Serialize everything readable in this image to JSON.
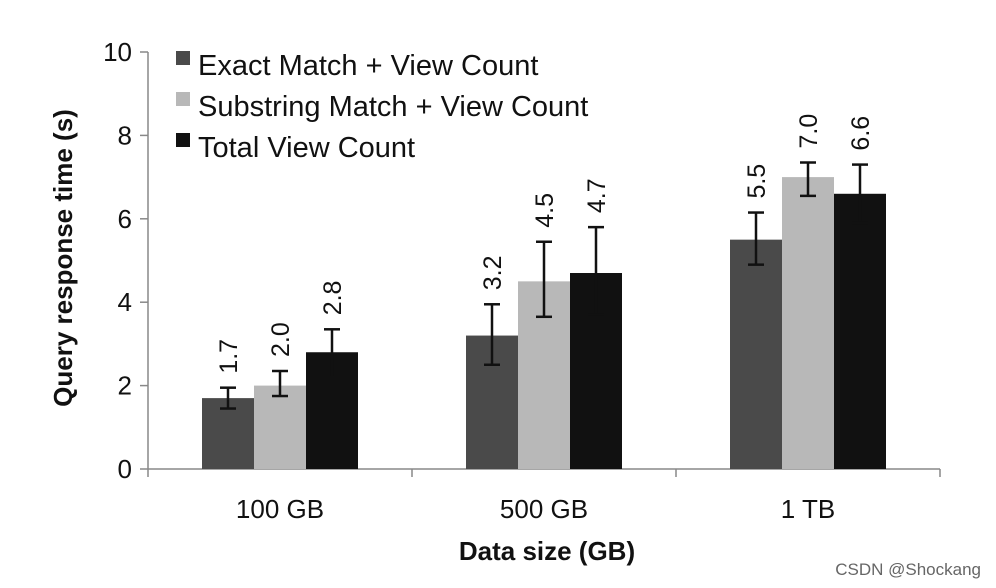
{
  "chart_data": {
    "type": "bar",
    "xlabel": "Data size (GB)",
    "ylabel": "Query response time (s)",
    "ylim": [
      0,
      10
    ],
    "yticks": [
      "0",
      "2",
      "4",
      "6",
      "8",
      "10"
    ],
    "categories": [
      "100 GB",
      "500 GB",
      "1 TB"
    ],
    "legend_position": "top-left",
    "grid": false,
    "series": [
      {
        "name": "Exact Match + View Count",
        "color": "#4a4a4a",
        "values": [
          1.7,
          3.2,
          5.5
        ],
        "labels": [
          "1.7",
          "3.2",
          "5.5"
        ],
        "error_low": [
          1.45,
          2.5,
          4.9
        ],
        "error_high": [
          1.95,
          3.95,
          6.15
        ]
      },
      {
        "name": "Substring Match + View Count",
        "color": "#b8b8b8",
        "values": [
          2.0,
          4.5,
          7.0
        ],
        "labels": [
          "2.0",
          "4.5",
          "7.0"
        ],
        "error_low": [
          1.75,
          3.65,
          6.55
        ],
        "error_high": [
          2.35,
          5.45,
          7.35
        ]
      },
      {
        "name": "Total View Count",
        "color": "#111111",
        "values": [
          2.8,
          4.7,
          6.6
        ],
        "labels": [
          "2.8",
          "4.7",
          "6.6"
        ],
        "error_low": [
          2.2,
          3.7,
          5.9
        ],
        "error_high": [
          3.35,
          5.8,
          7.3
        ]
      }
    ]
  },
  "watermark": "CSDN @Shockang"
}
